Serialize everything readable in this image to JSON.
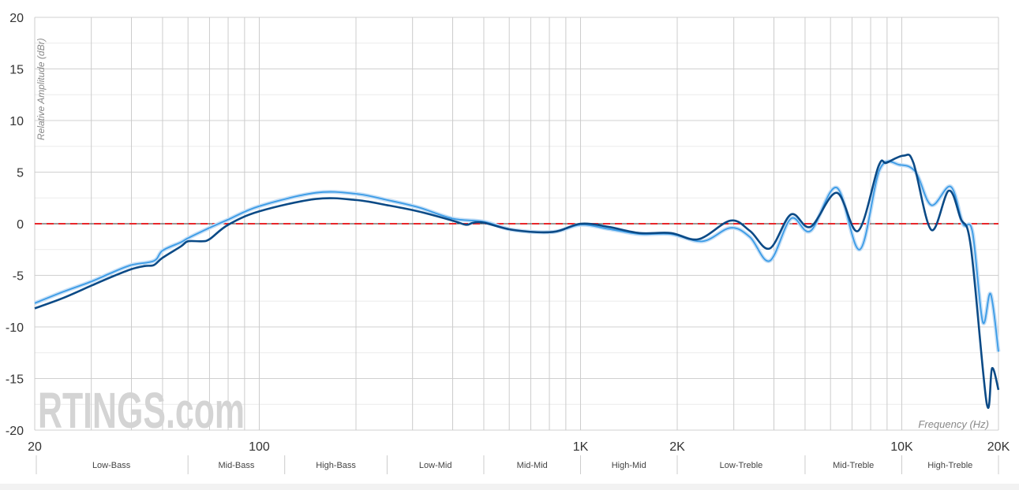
{
  "chart_data": {
    "type": "line",
    "title": "",
    "xlabel": "Frequency (Hz)",
    "ylabel": "Relative Amplitude (dBr)",
    "xscale": "log",
    "xlim": [
      20,
      20000
    ],
    "ylim": [
      -20,
      20
    ],
    "grid": true,
    "yticks": [
      20,
      15,
      10,
      5,
      0,
      -5,
      -10,
      -15,
      -20
    ],
    "xtick_labels": [
      {
        "value": 20,
        "label": "20"
      },
      {
        "value": 100,
        "label": "100"
      },
      {
        "value": 1000,
        "label": "1K"
      },
      {
        "value": 2000,
        "label": "2K"
      },
      {
        "value": 10000,
        "label": "10K"
      },
      {
        "value": 20000,
        "label": "20K"
      }
    ],
    "bands": [
      {
        "label": "Low-Bass",
        "from": 20,
        "to": 60
      },
      {
        "label": "Mid-Bass",
        "from": 60,
        "to": 120
      },
      {
        "label": "High-Bass",
        "from": 120,
        "to": 250
      },
      {
        "label": "Low-Mid",
        "from": 250,
        "to": 500
      },
      {
        "label": "Mid-Mid",
        "from": 500,
        "to": 1000
      },
      {
        "label": "High-Mid",
        "from": 1000,
        "to": 2000
      },
      {
        "label": "Low-Treble",
        "from": 2000,
        "to": 5000
      },
      {
        "label": "Mid-Treble",
        "from": 5000,
        "to": 10000
      },
      {
        "label": "High-Treble",
        "from": 10000,
        "to": 20000
      }
    ],
    "target": {
      "name": "target",
      "value": 0,
      "color": "#e8272a"
    },
    "watermark": "RTINGS.com",
    "series": [
      {
        "name": "measurement-light",
        "color": "#3a9be6",
        "halo": "#c4def6",
        "points": [
          [
            20,
            -7.7
          ],
          [
            24.5,
            -6.6
          ],
          [
            30,
            -5.6
          ],
          [
            34.4,
            -4.8
          ],
          [
            40,
            -4.0
          ],
          [
            47,
            -3.6
          ],
          [
            50,
            -2.6
          ],
          [
            57,
            -1.8
          ],
          [
            60,
            -1.4
          ],
          [
            70,
            -0.4
          ],
          [
            80,
            0.4
          ],
          [
            100,
            1.7
          ],
          [
            150,
            3.0
          ],
          [
            200,
            2.9
          ],
          [
            250,
            2.3
          ],
          [
            312,
            1.6
          ],
          [
            400,
            0.5
          ],
          [
            500,
            0.2
          ],
          [
            617,
            -0.6
          ],
          [
            820,
            -0.8
          ],
          [
            1000,
            -0.1
          ],
          [
            1220,
            -0.5
          ],
          [
            1525,
            -1.0
          ],
          [
            1910,
            -1.0
          ],
          [
            2400,
            -1.7
          ],
          [
            2930,
            -0.4
          ],
          [
            3370,
            -1.3
          ],
          [
            3880,
            -3.6
          ],
          [
            4520,
            0.5
          ],
          [
            5200,
            -0.7
          ],
          [
            6270,
            3.5
          ],
          [
            7400,
            -2.5
          ],
          [
            8550,
            5.3
          ],
          [
            9870,
            5.7
          ],
          [
            11050,
            5.0
          ],
          [
            12360,
            1.8
          ],
          [
            14200,
            3.6
          ],
          [
            15500,
            0.0
          ],
          [
            16600,
            -0.8
          ],
          [
            17860,
            -9.5
          ],
          [
            18900,
            -6.8
          ],
          [
            20000,
            -12.4
          ]
        ]
      },
      {
        "name": "measurement-dark",
        "color": "#0b4a86",
        "points": [
          [
            20,
            -8.2
          ],
          [
            24.5,
            -7.2
          ],
          [
            30,
            -6.0
          ],
          [
            34.4,
            -5.2
          ],
          [
            40,
            -4.4
          ],
          [
            44,
            -4.1
          ],
          [
            47,
            -4.0
          ],
          [
            50,
            -3.3
          ],
          [
            57,
            -2.2
          ],
          [
            60,
            -1.7
          ],
          [
            66,
            -1.7
          ],
          [
            70,
            -1.5
          ],
          [
            80,
            -0.1
          ],
          [
            100,
            1.2
          ],
          [
            150,
            2.4
          ],
          [
            200,
            2.3
          ],
          [
            250,
            1.8
          ],
          [
            312,
            1.2
          ],
          [
            400,
            0.3
          ],
          [
            440,
            -0.1
          ],
          [
            464,
            0.1
          ],
          [
            500,
            0.1
          ],
          [
            617,
            -0.6
          ],
          [
            820,
            -0.8
          ],
          [
            1000,
            0
          ],
          [
            1220,
            -0.3
          ],
          [
            1525,
            -0.9
          ],
          [
            1910,
            -0.9
          ],
          [
            2330,
            -1.5
          ],
          [
            2930,
            0.3
          ],
          [
            3370,
            -0.7
          ],
          [
            3880,
            -2.4
          ],
          [
            4520,
            0.9
          ],
          [
            5200,
            -0.3
          ],
          [
            6270,
            3.0
          ],
          [
            7310,
            -0.7
          ],
          [
            8470,
            5.6
          ],
          [
            8960,
            5.9
          ],
          [
            10140,
            6.6
          ],
          [
            10870,
            5.9
          ],
          [
            12360,
            -0.6
          ],
          [
            14000,
            3.2
          ],
          [
            15250,
            0.5
          ],
          [
            16400,
            -2.2
          ],
          [
            18380,
            -17.4
          ],
          [
            19100,
            -14
          ],
          [
            20000,
            -16.1
          ]
        ]
      }
    ]
  }
}
